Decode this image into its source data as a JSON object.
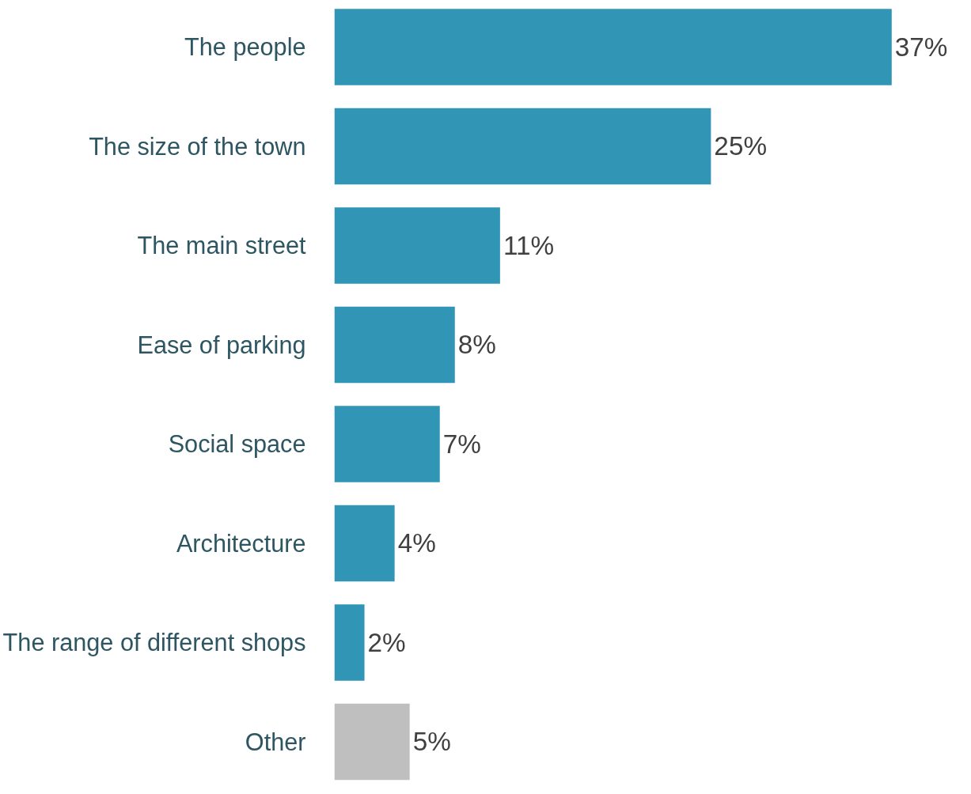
{
  "chart_data": {
    "type": "bar",
    "orientation": "horizontal",
    "categories": [
      "The people",
      "The size of the town",
      "The main street",
      "Ease of parking",
      "Social space",
      "Architecture",
      "The range of different shops",
      "Other"
    ],
    "values": [
      37,
      25,
      11,
      8,
      7,
      4,
      2,
      5
    ],
    "colors": [
      "#3196b6",
      "#3196b6",
      "#3196b6",
      "#3196b6",
      "#3196b6",
      "#3196b6",
      "#3196b6",
      "#bfbfbf"
    ],
    "value_labels": [
      "37%",
      "25%",
      "11%",
      "8%",
      "7%",
      "4%",
      "2%",
      "5%"
    ],
    "grid": false
  }
}
